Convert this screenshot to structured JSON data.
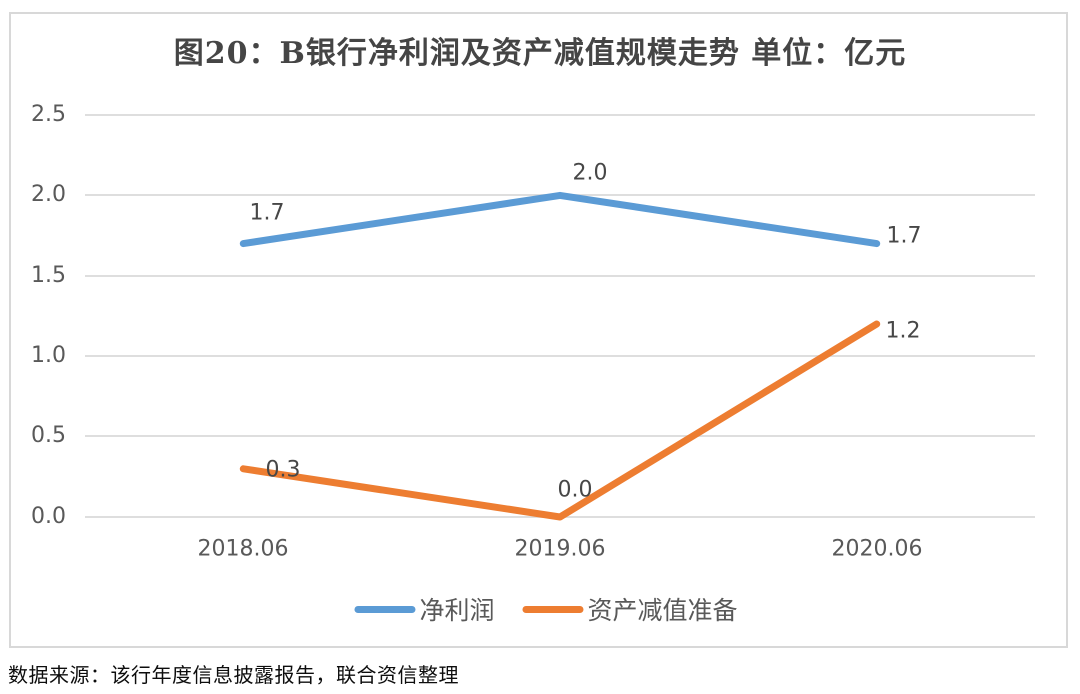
{
  "title": "图20：B银行净利润及资产减值规模走势 单位：亿元",
  "source": "数据来源：该行年度信息披露报告，联合资信整理",
  "colors": {
    "net_profit": "#5B9BD5",
    "impairment": "#ED7D31",
    "grid": "#D9D9D9",
    "border": "#D8D8D8",
    "axis_text": "#595959"
  },
  "chart_data": {
    "type": "line",
    "title": "图20：B银行净利润及资产减值规模走势 单位：亿元",
    "unit": "亿元",
    "categories": [
      "2018.06",
      "2019.06",
      "2020.06"
    ],
    "series": [
      {
        "name": "净利润",
        "color": "#5B9BD5",
        "values": [
          1.7,
          2.0,
          1.7
        ],
        "labels": [
          "1.7",
          "2.0",
          "1.7"
        ]
      },
      {
        "name": "资产减值准备",
        "color": "#ED7D31",
        "values": [
          0.3,
          0.0,
          1.2
        ],
        "labels": [
          "0.3",
          "0.0",
          "1.2"
        ]
      }
    ],
    "y_ticks": [
      "2.5",
      "2.0",
      "1.5",
      "1.0",
      "0.5",
      "0.0"
    ],
    "ylim": [
      0,
      2.5
    ],
    "grid": "horizontal",
    "legend_position": "bottom"
  }
}
